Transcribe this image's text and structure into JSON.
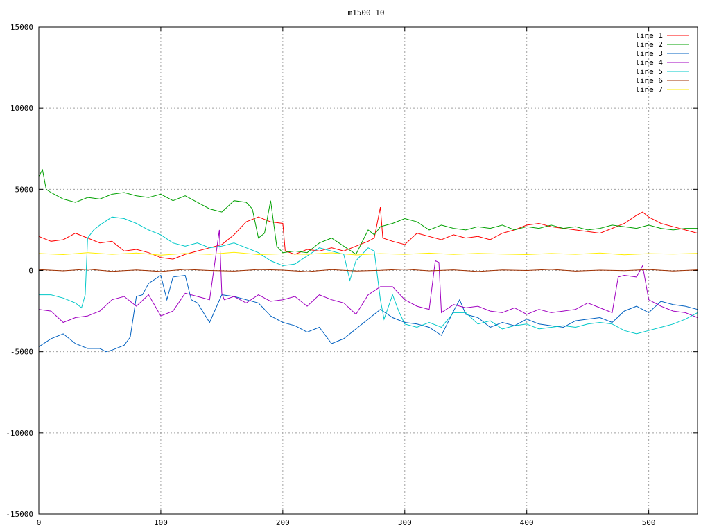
{
  "chart_data": {
    "type": "line",
    "title": "m1500_10",
    "xlabel": "",
    "ylabel": "",
    "xlim": [
      0,
      540
    ],
    "ylim": [
      -15000,
      15000
    ],
    "x_ticks": [
      0,
      100,
      200,
      300,
      400,
      500
    ],
    "y_ticks": [
      -15000,
      -10000,
      -5000,
      0,
      5000,
      10000,
      15000
    ],
    "grid": true,
    "legend_position": "top-right",
    "series": [
      {
        "name": "line 1",
        "color": "#ff0000",
        "x": [
          0,
          10,
          20,
          30,
          40,
          50,
          60,
          70,
          80,
          90,
          100,
          110,
          120,
          130,
          140,
          150,
          160,
          170,
          180,
          190,
          200,
          202,
          210,
          220,
          230,
          240,
          250,
          260,
          270,
          275,
          280,
          282,
          290,
          300,
          310,
          320,
          330,
          340,
          350,
          360,
          370,
          380,
          390,
          400,
          410,
          420,
          430,
          440,
          450,
          460,
          470,
          480,
          490,
          495,
          500,
          510,
          520,
          530,
          540
        ],
        "y": [
          2100,
          1800,
          1900,
          2300,
          2000,
          1700,
          1800,
          1200,
          1300,
          1100,
          800,
          700,
          1000,
          1200,
          1400,
          1600,
          2200,
          3000,
          3300,
          3000,
          2900,
          1200,
          1000,
          1300,
          1200,
          1400,
          1200,
          1500,
          1800,
          2000,
          3900,
          2000,
          1800,
          1600,
          2300,
          2100,
          1900,
          2200,
          2000,
          2100,
          1900,
          2300,
          2500,
          2800,
          2900,
          2700,
          2600,
          2500,
          2400,
          2300,
          2600,
          2900,
          3400,
          3600,
          3300,
          2900,
          2700,
          2500,
          2300
        ]
      },
      {
        "name": "line 2",
        "color": "#00a000",
        "x": [
          0,
          3,
          6,
          10,
          20,
          30,
          40,
          50,
          60,
          70,
          80,
          90,
          100,
          110,
          120,
          130,
          140,
          150,
          160,
          170,
          175,
          180,
          185,
          190,
          195,
          200,
          210,
          220,
          230,
          240,
          250,
          260,
          270,
          275,
          280,
          290,
          300,
          310,
          320,
          330,
          340,
          350,
          360,
          370,
          380,
          390,
          400,
          410,
          420,
          430,
          440,
          450,
          460,
          470,
          480,
          490,
          500,
          510,
          520,
          530,
          540
        ],
        "y": [
          5800,
          6200,
          5000,
          4800,
          4400,
          4200,
          4500,
          4400,
          4700,
          4800,
          4600,
          4500,
          4700,
          4300,
          4600,
          4200,
          3800,
          3600,
          4300,
          4200,
          3800,
          2000,
          2300,
          4300,
          1500,
          1100,
          1200,
          1100,
          1700,
          2000,
          1500,
          1000,
          2500,
          2200,
          2700,
          2900,
          3200,
          3000,
          2500,
          2800,
          2600,
          2500,
          2700,
          2600,
          2800,
          2500,
          2700,
          2600,
          2800,
          2600,
          2700,
          2500,
          2600,
          2800,
          2700,
          2600,
          2800,
          2600,
          2500,
          2600,
          2600
        ]
      },
      {
        "name": "line 3",
        "color": "#0060c0",
        "x": [
          0,
          10,
          20,
          30,
          40,
          50,
          55,
          60,
          70,
          75,
          80,
          85,
          90,
          100,
          105,
          110,
          120,
          125,
          130,
          140,
          150,
          160,
          170,
          180,
          190,
          200,
          210,
          220,
          230,
          240,
          250,
          260,
          270,
          280,
          290,
          300,
          310,
          320,
          330,
          340,
          345,
          350,
          360,
          370,
          380,
          390,
          400,
          410,
          420,
          430,
          440,
          450,
          460,
          470,
          480,
          490,
          500,
          510,
          520,
          530,
          540
        ],
        "y": [
          -4700,
          -4200,
          -3900,
          -4500,
          -4800,
          -4800,
          -5000,
          -4900,
          -4600,
          -4100,
          -1600,
          -1500,
          -800,
          -300,
          -1800,
          -400,
          -300,
          -1800,
          -2000,
          -3200,
          -1500,
          -1600,
          -1800,
          -2000,
          -2800,
          -3200,
          -3400,
          -3800,
          -3500,
          -4500,
          -4200,
          -3600,
          -3000,
          -2400,
          -2900,
          -3200,
          -3300,
          -3500,
          -4000,
          -2500,
          -1800,
          -2700,
          -2900,
          -3500,
          -3200,
          -3400,
          -3000,
          -3300,
          -3400,
          -3500,
          -3100,
          -3000,
          -2900,
          -3200,
          -2500,
          -2200,
          -2600,
          -1900,
          -2100,
          -2200,
          -2400
        ]
      },
      {
        "name": "line 4",
        "color": "#a000c0",
        "x": [
          0,
          10,
          20,
          30,
          40,
          50,
          60,
          70,
          80,
          90,
          100,
          110,
          120,
          130,
          140,
          148,
          150,
          152,
          160,
          170,
          180,
          190,
          200,
          210,
          220,
          230,
          240,
          250,
          260,
          270,
          280,
          290,
          300,
          310,
          320,
          325,
          328,
          330,
          340,
          350,
          360,
          370,
          380,
          390,
          400,
          410,
          420,
          430,
          440,
          450,
          460,
          470,
          475,
          480,
          490,
          495,
          500,
          510,
          520,
          530,
          540
        ],
        "y": [
          -2400,
          -2500,
          -3200,
          -2900,
          -2800,
          -2500,
          -1800,
          -1600,
          -2200,
          -1500,
          -2800,
          -2500,
          -1400,
          -1600,
          -1800,
          2500,
          -1400,
          -1800,
          -1600,
          -2000,
          -1500,
          -1900,
          -1800,
          -1600,
          -2200,
          -1500,
          -1800,
          -2000,
          -2700,
          -1500,
          -1000,
          -1000,
          -1800,
          -2200,
          -2400,
          600,
          500,
          -2600,
          -2100,
          -2300,
          -2200,
          -2500,
          -2600,
          -2300,
          -2700,
          -2400,
          -2600,
          -2500,
          -2400,
          -2000,
          -2300,
          -2600,
          -400,
          -300,
          -400,
          300,
          -1800,
          -2200,
          -2500,
          -2600,
          -2900
        ]
      },
      {
        "name": "line 5",
        "color": "#00c8c8",
        "x": [
          0,
          10,
          20,
          30,
          35,
          38,
          40,
          45,
          50,
          60,
          70,
          80,
          90,
          100,
          110,
          120,
          130,
          140,
          150,
          160,
          170,
          180,
          190,
          200,
          210,
          220,
          230,
          240,
          250,
          255,
          260,
          270,
          275,
          280,
          283,
          290,
          295,
          300,
          310,
          320,
          330,
          340,
          350,
          360,
          370,
          380,
          390,
          400,
          410,
          420,
          430,
          440,
          450,
          460,
          470,
          480,
          490,
          500,
          510,
          520,
          530,
          540
        ],
        "y": [
          -1500,
          -1500,
          -1700,
          -2000,
          -2300,
          -1500,
          2000,
          2500,
          2800,
          3300,
          3200,
          2900,
          2500,
          2200,
          1700,
          1500,
          1700,
          1400,
          1500,
          1700,
          1400,
          1100,
          600,
          300,
          400,
          900,
          1400,
          1200,
          1000,
          -600,
          600,
          1400,
          1200,
          -1800,
          -3000,
          -1500,
          -2500,
          -3300,
          -3500,
          -3200,
          -3500,
          -2600,
          -2600,
          -3300,
          -3100,
          -3600,
          -3400,
          -3300,
          -3600,
          -3500,
          -3400,
          -3500,
          -3300,
          -3200,
          -3300,
          -3700,
          -3900,
          -3700,
          -3500,
          -3300,
          -3000,
          -2600
        ]
      },
      {
        "name": "line 6",
        "color": "#a03000",
        "x": [
          0,
          20,
          40,
          60,
          80,
          100,
          120,
          140,
          160,
          180,
          200,
          220,
          240,
          260,
          280,
          300,
          320,
          340,
          360,
          380,
          400,
          420,
          440,
          460,
          480,
          500,
          520,
          540
        ],
        "y": [
          50,
          -20,
          80,
          -50,
          30,
          -60,
          70,
          0,
          -40,
          60,
          20,
          -70,
          50,
          -30,
          10,
          80,
          -20,
          40,
          -60,
          30,
          0,
          70,
          -40,
          20,
          -10,
          60,
          -30,
          40
        ]
      },
      {
        "name": "line 7",
        "color": "#ffee00",
        "x": [
          0,
          20,
          40,
          60,
          80,
          100,
          120,
          140,
          160,
          180,
          200,
          220,
          240,
          260,
          280,
          300,
          320,
          340,
          360,
          380,
          400,
          420,
          440,
          460,
          480,
          500,
          520,
          540
        ],
        "y": [
          1050,
          980,
          1100,
          1000,
          1080,
          950,
          1050,
          1000,
          1120,
          980,
          1030,
          1000,
          1090,
          960,
          1040,
          1000,
          1070,
          990,
          1060,
          1010,
          980,
          1050,
          1000,
          1080,
          970,
          1040,
          1010,
          1060
        ]
      }
    ]
  }
}
